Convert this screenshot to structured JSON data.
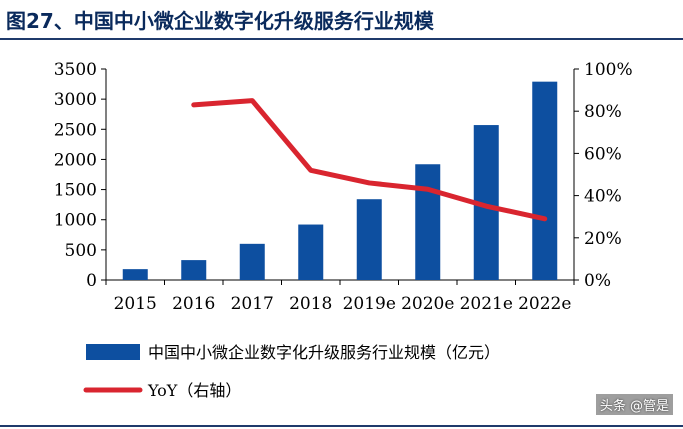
{
  "title": "图27、中国中小微企业数字化升级服务行业规模",
  "watermark": "头条 @管是",
  "colors": {
    "bar": "#0d4fa0",
    "line": "#d9252f",
    "title": "#0a2a5c"
  },
  "chart_data": {
    "type": "bar",
    "categories": [
      "2015",
      "2016",
      "2017",
      "2018",
      "2019e",
      "2020e",
      "2021e",
      "2022e"
    ],
    "series": [
      {
        "name": "中国中小微企业数字化升级服务行业规模（亿元）",
        "type": "bar",
        "axis": "left",
        "values": [
          180,
          330,
          600,
          920,
          1340,
          1920,
          2570,
          3290
        ]
      },
      {
        "name": "YoY（右轴）",
        "type": "line",
        "axis": "right",
        "values": [
          null,
          0.83,
          0.85,
          0.52,
          0.46,
          0.43,
          0.35,
          0.29
        ]
      }
    ],
    "y_left": {
      "min": 0,
      "max": 3500,
      "ticks": [
        "0",
        "500",
        "1000",
        "1500",
        "2000",
        "2500",
        "3000",
        "3500"
      ]
    },
    "y_right": {
      "min": 0,
      "max": 1,
      "ticks": [
        "0%",
        "20%",
        "40%",
        "60%",
        "80%",
        "100%"
      ]
    },
    "legend": [
      "中国中小微企业数字化升级服务行业规模（亿元）",
      "YoY（右轴）"
    ],
    "legend_position": "bottom-left",
    "grid": false
  }
}
